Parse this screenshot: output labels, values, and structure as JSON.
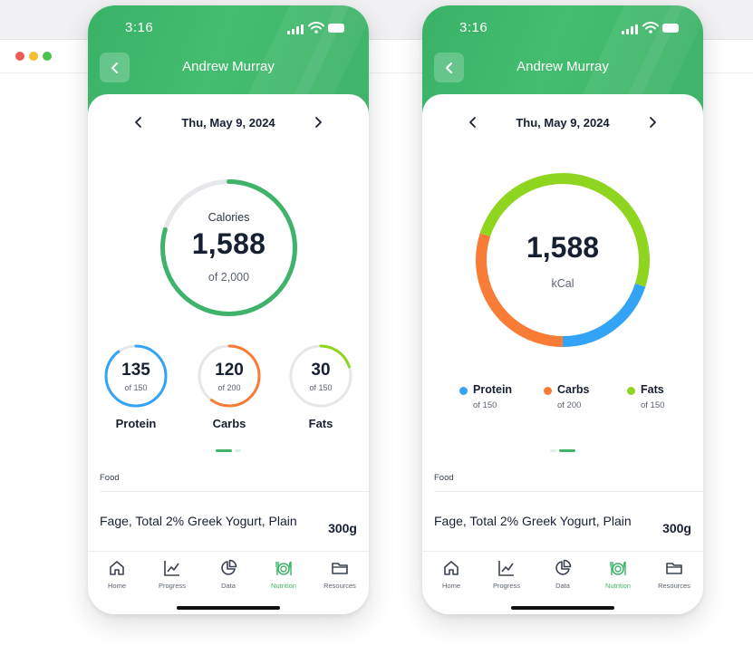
{
  "colors": {
    "brand_green": "#3fb36a",
    "protein_blue": "#33a3f5",
    "carbs_orange": "#f87c35",
    "fats_lime": "#8fd41f",
    "ring_track": "#e6e6eb"
  },
  "phones": [
    {
      "status": {
        "time": "3:16"
      },
      "header": {
        "title": "Andrew Murray",
        "back_icon": "chevron-left-icon"
      },
      "date": {
        "label": "Thu, May 9, 2024"
      },
      "calories": {
        "label": "Calories",
        "value": "1,588",
        "goal": "of 2,000",
        "progress": 0.794
      },
      "macros": [
        {
          "key": "protein",
          "name": "Protein",
          "value": "135",
          "goal": "of 150",
          "progress": 0.9,
          "color": "#33a3f5"
        },
        {
          "key": "carbs",
          "name": "Carbs",
          "value": "120",
          "goal": "of 200",
          "progress": 0.6,
          "color": "#f87c35"
        },
        {
          "key": "fats",
          "name": "Fats",
          "value": "30",
          "goal": "of 150",
          "progress": 0.2,
          "color": "#8fd41f"
        }
      ],
      "pager": {
        "active_page": 1,
        "pages": 2
      },
      "food": {
        "header": "Food",
        "items": [
          {
            "name": "Fage, Total 2% Greek Yogurt, Plain",
            "amount": "300g"
          }
        ]
      },
      "tabs": [
        {
          "key": "home",
          "label": "Home",
          "icon": "home-icon"
        },
        {
          "key": "progress",
          "label": "Progress",
          "icon": "trend-chart-icon"
        },
        {
          "key": "data",
          "label": "Data",
          "icon": "pie-chart-icon"
        },
        {
          "key": "nutrition",
          "label": "Nutrition",
          "icon": "plate-icon",
          "active": true
        },
        {
          "key": "resources",
          "label": "Resources",
          "icon": "folder-icon"
        }
      ]
    },
    {
      "status": {
        "time": "3:16"
      },
      "header": {
        "title": "Andrew Murray",
        "back_icon": "chevron-left-icon"
      },
      "date": {
        "label": "Thu, May 9, 2024"
      },
      "kcal": {
        "value": "1,588",
        "unit": "kCal"
      },
      "donut": [
        {
          "name": "Protein",
          "share": 0.2,
          "color": "#33a3f5"
        },
        {
          "name": "Carbs",
          "share": 0.3,
          "color": "#f87c35"
        },
        {
          "name": "Fats",
          "share": 0.5,
          "color": "#8fd41f"
        }
      ],
      "legend": [
        {
          "name": "Protein",
          "goal": "of 150",
          "color": "#33a3f5"
        },
        {
          "name": "Carbs",
          "goal": "of 200",
          "color": "#f87c35"
        },
        {
          "name": "Fats",
          "goal": "of 150",
          "color": "#8fd41f"
        }
      ],
      "pager": {
        "active_page": 2,
        "pages": 2
      },
      "food": {
        "header": "Food",
        "items": [
          {
            "name": "Fage, Total 2% Greek Yogurt, Plain",
            "amount": "300g"
          }
        ]
      },
      "tabs": [
        {
          "key": "home",
          "label": "Home",
          "icon": "home-icon"
        },
        {
          "key": "progress",
          "label": "Progress",
          "icon": "trend-chart-icon"
        },
        {
          "key": "data",
          "label": "Data",
          "icon": "pie-chart-icon"
        },
        {
          "key": "nutrition",
          "label": "Nutrition",
          "icon": "plate-icon",
          "active": true
        },
        {
          "key": "resources",
          "label": "Resources",
          "icon": "folder-icon"
        }
      ]
    }
  ]
}
